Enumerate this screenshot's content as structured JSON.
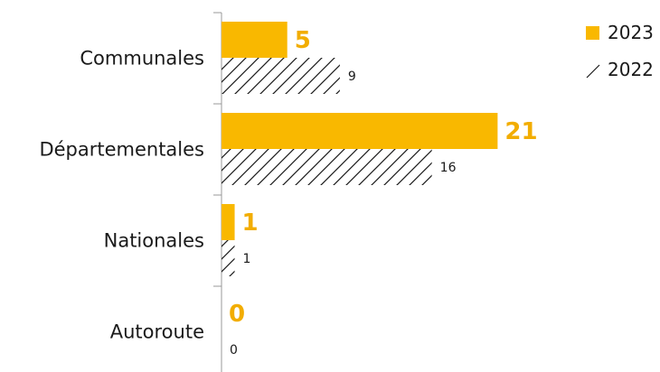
{
  "chart_data": {
    "type": "bar",
    "orientation": "horizontal",
    "categories": [
      "Communales",
      "Départementales",
      "Nationales",
      "Autoroute"
    ],
    "series": [
      {
        "name": "2023",
        "values": [
          5,
          21,
          1,
          0
        ],
        "color": "#f9b800",
        "fill": "solid"
      },
      {
        "name": "2022",
        "values": [
          9,
          16,
          1,
          0
        ],
        "color": "#1a1a1a",
        "fill": "hatched"
      }
    ],
    "xlim": [
      0,
      24
    ],
    "grid": false,
    "legend": "top-right"
  }
}
